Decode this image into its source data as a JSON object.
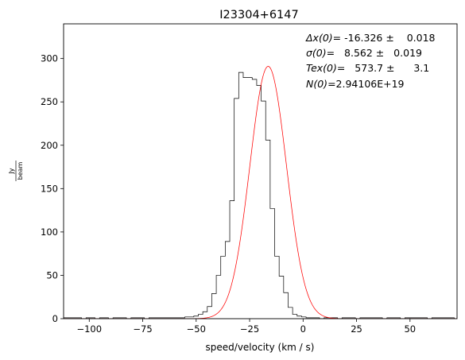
{
  "chart_data": {
    "type": "line",
    "title": "I23304+6147",
    "xlabel": "speed/velocity (km / s)",
    "ylabel_num": "Jy",
    "ylabel_den": "beam",
    "xlim": [
      -112,
      72
    ],
    "ylim": [
      0,
      340
    ],
    "xticks": [
      -100,
      -75,
      -50,
      -25,
      0,
      25,
      50
    ],
    "yticks": [
      0,
      50,
      100,
      150,
      200,
      250,
      300
    ],
    "grid": false,
    "annotations": {
      "line1_sym": "Δx(0)",
      "line1_val": "= -16.326 ±    0.018",
      "line2_sym": "σ(0)",
      "line2_val": "=   8.562 ±   0.019",
      "line3_sym": "Tex(0)",
      "line3_val": "=   573.7 ±      3.1",
      "line4_sym": "N(0)",
      "line4_val": "=2.94106E+19"
    },
    "series": [
      {
        "kind": "step",
        "color": "#000000",
        "bin_width": 2.1,
        "x_start": -112,
        "values": [
          1,
          1,
          1,
          1,
          0,
          1,
          1,
          0,
          1,
          1,
          0,
          1,
          1,
          1,
          0,
          1,
          1,
          1,
          0,
          1,
          1,
          1,
          1,
          1,
          1,
          1,
          1,
          2,
          2,
          3,
          5,
          8,
          14,
          29,
          50,
          72,
          89,
          136,
          254,
          284,
          278,
          278,
          276,
          269,
          251,
          206,
          127,
          72,
          49,
          30,
          13,
          5,
          3,
          2,
          1,
          1,
          1,
          0,
          1,
          1,
          1,
          0,
          1,
          1,
          1,
          0,
          1,
          1,
          1,
          1,
          1,
          0,
          1,
          1,
          1,
          0,
          1,
          1,
          1,
          1,
          1,
          0,
          1,
          1,
          1,
          1,
          1,
          0
        ]
      },
      {
        "kind": "gaussian-fit",
        "color": "#ff0000",
        "center": -16.326,
        "sigma": 8.562,
        "amplitude": 291
      }
    ]
  }
}
